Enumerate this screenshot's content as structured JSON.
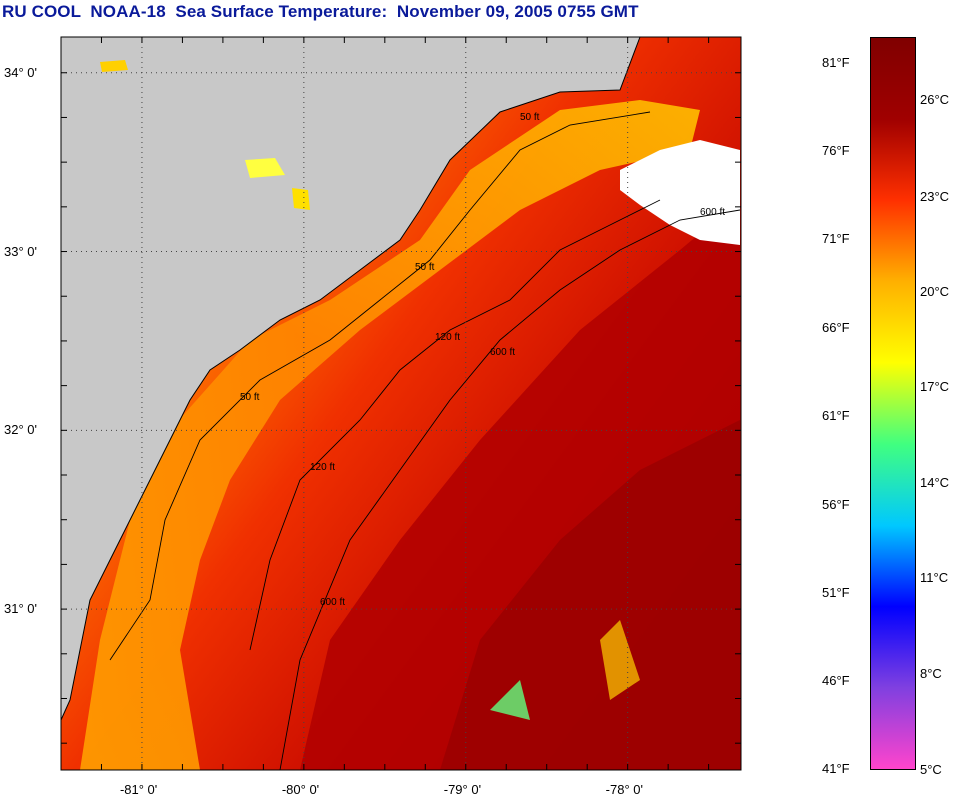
{
  "title": "RU COOL  NOAA-18  Sea Surface Temperature:  November 09, 2005 0755 GMT",
  "map": {
    "lat_ticks": [
      "34° 0'",
      "33° 0'",
      "32° 0'",
      "31° 0'"
    ],
    "lon_ticks": [
      "-81° 0'",
      "-80° 0'",
      "-79° 0'",
      "-78° 0'"
    ],
    "lat_range": [
      30.1,
      34.2
    ],
    "lon_range": [
      -81.5,
      -77.3
    ],
    "land_color": "#c8c8c8",
    "cloud_color": "#ffffff",
    "contour_labels": [
      "50 ft",
      "120 ft",
      "600 ft"
    ]
  },
  "colorbar": {
    "f_labels": [
      "81°F",
      "76°F",
      "71°F",
      "66°F",
      "61°F",
      "56°F",
      "51°F",
      "46°F",
      "41°F"
    ],
    "c_labels": [
      "26°C",
      "23°C",
      "20°C",
      "17°C",
      "14°C",
      "11°C",
      "8°C",
      "5°C"
    ],
    "range_c": [
      5,
      28
    ],
    "colors": [
      "#ff44cc",
      "#8040e0",
      "#0000ff",
      "#00c8ff",
      "#40ff80",
      "#ffff00",
      "#ffb000",
      "#ff3000",
      "#a00000",
      "#800000"
    ]
  }
}
